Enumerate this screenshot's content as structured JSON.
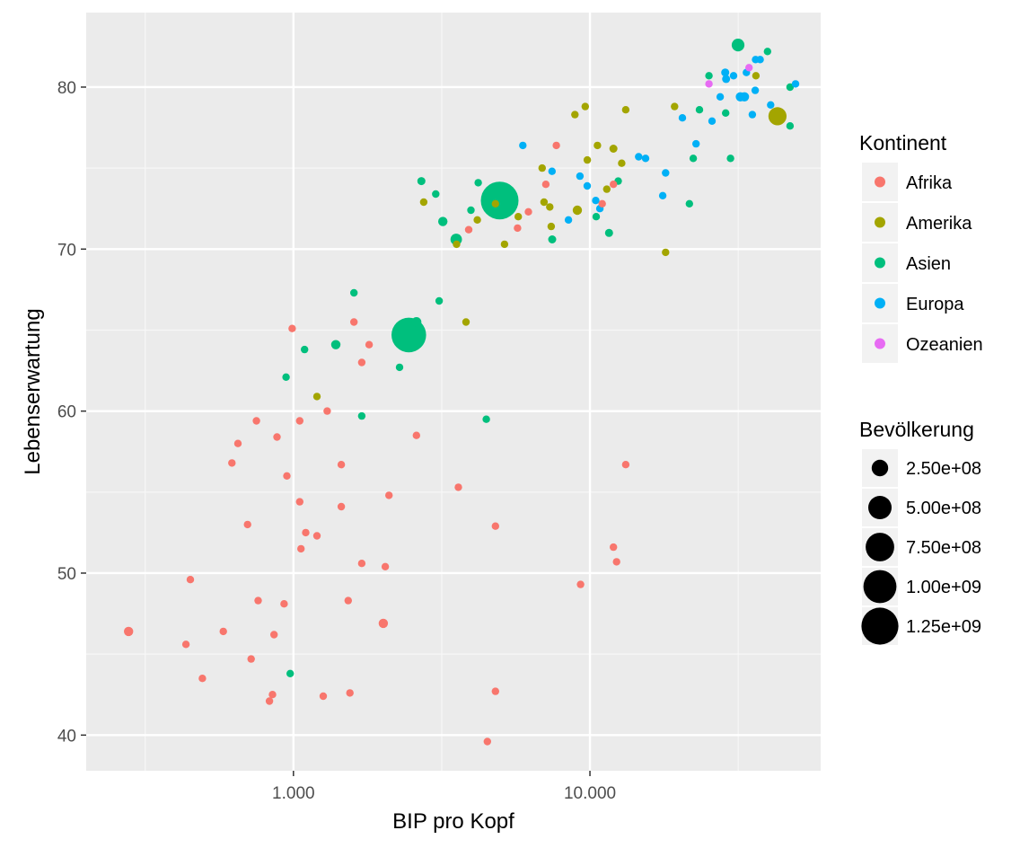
{
  "chart_data": {
    "type": "scatter",
    "xlabel": "BIP pro Kopf",
    "ylabel": "Lebenserwartung",
    "x_scale": "log10",
    "xlim": [
      200,
      60000
    ],
    "ylim": [
      37.8,
      84.6
    ],
    "x_ticks": [
      {
        "value": 1000,
        "label": "1.000"
      },
      {
        "value": 10000,
        "label": "10.000"
      }
    ],
    "x_minor_ticks": [
      316.2,
      3162.3,
      31622.8
    ],
    "y_ticks": [
      {
        "value": 40,
        "label": "40"
      },
      {
        "value": 50,
        "label": "50"
      },
      {
        "value": 60,
        "label": "60"
      },
      {
        "value": 70,
        "label": "70"
      },
      {
        "value": 80,
        "label": "80"
      }
    ],
    "y_minor_ticks": [
      45,
      55,
      65,
      75
    ],
    "grid": true,
    "panel_background": "#ebebeb",
    "legend_position": "right",
    "color_legend": {
      "title": "Kontinent",
      "entries": [
        {
          "name": "Afrika",
          "color": "#F8766D"
        },
        {
          "name": "Amerika",
          "color": "#A3A500"
        },
        {
          "name": "Asien",
          "color": "#00BF7D"
        },
        {
          "name": "Europa",
          "color": "#00B0F6"
        },
        {
          "name": "Ozeanien",
          "color": "#E76BF3"
        }
      ]
    },
    "size_legend": {
      "title": "Bevölkerung",
      "color": "#000000",
      "entries": [
        {
          "label": "2.50e+08",
          "value": 250000000
        },
        {
          "label": "5.00e+08",
          "value": 500000000
        },
        {
          "label": "7.50e+08",
          "value": 750000000
        },
        {
          "label": "1.00e+09",
          "value": 1000000000
        },
        {
          "label": "1.25e+09",
          "value": 1250000000
        }
      ]
    },
    "series": [
      {
        "name": "Afrika",
        "points": [
          [
            278,
            46.4,
            80000000
          ],
          [
            434,
            45.6,
            10000000
          ],
          [
            449,
            49.6,
            10000000
          ],
          [
            493,
            43.5,
            10000000
          ],
          [
            580,
            46.4,
            10000000
          ],
          [
            620,
            56.8,
            15000000
          ],
          [
            650,
            58.0,
            10000000
          ],
          [
            700,
            53.0,
            50000000
          ],
          [
            720,
            44.7,
            10000000
          ],
          [
            750,
            59.4,
            10000000
          ],
          [
            760,
            48.3,
            15000000
          ],
          [
            830,
            42.1,
            15000000
          ],
          [
            850,
            42.5,
            10000000
          ],
          [
            860,
            46.2,
            10000000
          ],
          [
            880,
            58.4,
            10000000
          ],
          [
            930,
            48.1,
            15000000
          ],
          [
            950,
            56.0,
            10000000
          ],
          [
            990,
            65.1,
            10000000
          ],
          [
            1050,
            59.4,
            15000000
          ],
          [
            1050,
            54.4,
            15000000
          ],
          [
            1060,
            51.5,
            20000000
          ],
          [
            1100,
            52.5,
            30000000
          ],
          [
            1200,
            52.3,
            20000000
          ],
          [
            1260,
            42.4,
            15000000
          ],
          [
            1300,
            60.0,
            20000000
          ],
          [
            1450,
            56.7,
            15000000
          ],
          [
            1450,
            54.1,
            30000000
          ],
          [
            1530,
            48.3,
            20000000
          ],
          [
            1550,
            42.6,
            10000000
          ],
          [
            1600,
            65.5,
            10000000
          ],
          [
            1700,
            50.6,
            15000000
          ],
          [
            1700,
            63.0,
            15000000
          ],
          [
            1800,
            64.1,
            15000000
          ],
          [
            2010,
            46.9,
            80000000
          ],
          [
            2040,
            50.4,
            20000000
          ],
          [
            2100,
            54.8,
            10000000
          ],
          [
            2600,
            58.5,
            30000000
          ],
          [
            3600,
            55.3,
            10000000
          ],
          [
            3900,
            71.2,
            20000000
          ],
          [
            4510,
            39.6,
            10000000
          ],
          [
            4800,
            52.9,
            10000000
          ],
          [
            4800,
            42.7,
            20000000
          ],
          [
            5700,
            71.3,
            40000000
          ],
          [
            6200,
            72.3,
            20000000
          ],
          [
            7100,
            74.0,
            15000000
          ],
          [
            7700,
            76.4,
            10000000
          ],
          [
            9300,
            49.3,
            30000000
          ],
          [
            12000,
            51.6,
            10000000
          ],
          [
            12300,
            50.7,
            10000000
          ],
          [
            13200,
            56.7,
            10000000
          ],
          [
            11000,
            72.8,
            10000000
          ],
          [
            12000,
            74.0,
            10000000
          ]
        ]
      },
      {
        "name": "Amerika",
        "points": [
          [
            1200,
            60.9,
            15000000
          ],
          [
            2750,
            72.9,
            10000000
          ],
          [
            3550,
            70.3,
            15000000
          ],
          [
            3820,
            65.5,
            20000000
          ],
          [
            4170,
            71.8,
            15000000
          ],
          [
            4800,
            72.8,
            20000000
          ],
          [
            5150,
            70.3,
            15000000
          ],
          [
            5730,
            72.0,
            15000000
          ],
          [
            6900,
            75.0,
            20000000
          ],
          [
            7000,
            72.9,
            30000000
          ],
          [
            7320,
            72.6,
            15000000
          ],
          [
            7400,
            71.4,
            30000000
          ],
          [
            8900,
            78.3,
            20000000
          ],
          [
            9070,
            72.4,
            80000000
          ],
          [
            9640,
            78.8,
            15000000
          ],
          [
            9800,
            75.5,
            10000000
          ],
          [
            10600,
            76.4,
            15000000
          ],
          [
            11400,
            73.7,
            20000000
          ],
          [
            12000,
            76.2,
            60000000
          ],
          [
            12800,
            75.3,
            30000000
          ],
          [
            13200,
            78.6,
            20000000
          ],
          [
            18000,
            69.8,
            10000000
          ],
          [
            19300,
            78.8,
            15000000
          ],
          [
            36300,
            80.7,
            30000000
          ],
          [
            42900,
            78.2,
            300000000
          ]
        ]
      },
      {
        "name": "Asien",
        "points": [
          [
            944,
            62.1,
            40000000
          ],
          [
            975,
            43.8,
            30000000
          ],
          [
            1090,
            63.8,
            40000000
          ],
          [
            1390,
            64.1,
            80000000
          ],
          [
            1600,
            67.3,
            30000000
          ],
          [
            1700,
            59.7,
            20000000
          ],
          [
            2280,
            62.7,
            30000000
          ],
          [
            2450,
            64.7,
            1100000000
          ],
          [
            2600,
            65.5,
            90000000
          ],
          [
            2700,
            74.2,
            60000000
          ],
          [
            3020,
            73.4,
            15000000
          ],
          [
            3100,
            66.8,
            10000000
          ],
          [
            3190,
            71.7,
            80000000
          ],
          [
            3540,
            70.6,
            120000000
          ],
          [
            3970,
            72.4,
            30000000
          ],
          [
            4200,
            74.1,
            20000000
          ],
          [
            4470,
            59.5,
            40000000
          ],
          [
            4960,
            73.0,
            1300000000
          ],
          [
            7460,
            70.6,
            60000000
          ],
          [
            10500,
            72.0,
            15000000
          ],
          [
            11600,
            71.0,
            60000000
          ],
          [
            12450,
            74.2,
            30000000
          ],
          [
            21650,
            72.8,
            40000000
          ],
          [
            22300,
            75.6,
            10000000
          ],
          [
            23400,
            78.6,
            50000000
          ],
          [
            25200,
            80.7,
            15000000
          ],
          [
            28700,
            78.4,
            30000000
          ],
          [
            29800,
            75.6,
            10000000
          ],
          [
            31600,
            82.6,
            150000000
          ],
          [
            39700,
            82.2,
            20000000
          ],
          [
            47300,
            80.0,
            10000000
          ],
          [
            47300,
            77.6,
            15000000
          ]
        ]
      },
      {
        "name": "Europa",
        "points": [
          [
            5940,
            76.4,
            10000000
          ],
          [
            7450,
            74.8,
            10000000
          ],
          [
            8460,
            71.8,
            50000000
          ],
          [
            9250,
            74.5,
            10000000
          ],
          [
            9790,
            73.9,
            10000000
          ],
          [
            10460,
            73.0,
            15000000
          ],
          [
            10800,
            72.5,
            15000000
          ],
          [
            14600,
            75.7,
            15000000
          ],
          [
            15400,
            75.6,
            50000000
          ],
          [
            17600,
            73.3,
            20000000
          ],
          [
            18000,
            74.7,
            15000000
          ],
          [
            20500,
            78.1,
            20000000
          ],
          [
            22800,
            76.5,
            20000000
          ],
          [
            25800,
            77.9,
            10000000
          ],
          [
            27500,
            79.4,
            20000000
          ],
          [
            28600,
            80.9,
            60000000
          ],
          [
            28800,
            80.5,
            60000000
          ],
          [
            30500,
            80.7,
            50000000
          ],
          [
            32170,
            79.4,
            80000000
          ],
          [
            33200,
            79.4,
            80000000
          ],
          [
            33700,
            80.9,
            20000000
          ],
          [
            35300,
            78.3,
            15000000
          ],
          [
            36100,
            79.8,
            40000000
          ],
          [
            36200,
            81.7,
            20000000
          ],
          [
            37500,
            81.7,
            20000000
          ],
          [
            40700,
            78.9,
            10000000
          ],
          [
            49360,
            80.2,
            10000000
          ]
        ]
      },
      {
        "name": "Ozeanien",
        "points": [
          [
            25200,
            80.2,
            15000000
          ],
          [
            34400,
            81.2,
            20000000
          ]
        ]
      }
    ]
  }
}
